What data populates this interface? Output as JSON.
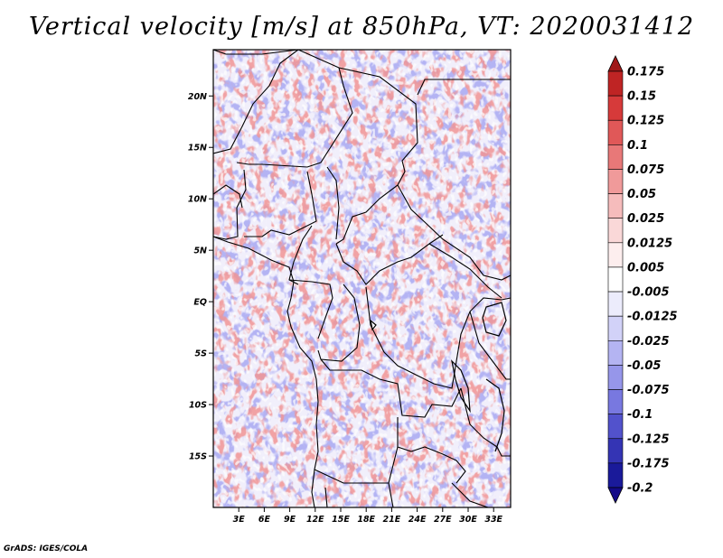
{
  "title": "Vertical velocity [m/s] at 850hPa, VT: 2020031412",
  "footer": "GrADS: IGES/COLA",
  "chart_data": {
    "type": "heatmap",
    "title": "Vertical velocity [m/s] at 850hPa, VT: 2020031412",
    "variable": "Vertical velocity",
    "units": "m/s",
    "level": "850hPa",
    "valid_time": "2020031412",
    "xlabel": "",
    "ylabel": "",
    "xlim": [
      0,
      35
    ],
    "ylim": [
      -20,
      24.5
    ],
    "x_ticks": [
      {
        "value": 3,
        "label": "3E"
      },
      {
        "value": 6,
        "label": "6E"
      },
      {
        "value": 9,
        "label": "9E"
      },
      {
        "value": 12,
        "label": "12E"
      },
      {
        "value": 15,
        "label": "15E"
      },
      {
        "value": 18,
        "label": "18E"
      },
      {
        "value": 21,
        "label": "21E"
      },
      {
        "value": 24,
        "label": "24E"
      },
      {
        "value": 27,
        "label": "27E"
      },
      {
        "value": 30,
        "label": "30E"
      },
      {
        "value": 33,
        "label": "33E"
      }
    ],
    "y_ticks": [
      {
        "value": 20,
        "label": "20N"
      },
      {
        "value": 15,
        "label": "15N"
      },
      {
        "value": 10,
        "label": "10N"
      },
      {
        "value": 5,
        "label": "5N"
      },
      {
        "value": 0,
        "label": "EQ"
      },
      {
        "value": -5,
        "label": "5S"
      },
      {
        "value": -10,
        "label": "10S"
      },
      {
        "value": -15,
        "label": "15S"
      }
    ],
    "colorbar": {
      "labels": [
        "0.175",
        "0.15",
        "0.125",
        "0.1",
        "0.075",
        "0.05",
        "0.025",
        "0.0125",
        "0.005",
        "-0.005",
        "-0.0125",
        "-0.025",
        "-0.05",
        "-0.075",
        "-0.1",
        "-0.125",
        "-0.175",
        "-0.2"
      ],
      "colors": [
        "#a01818",
        "#bf2424",
        "#d63a3a",
        "#e05858",
        "#e87878",
        "#f09a9a",
        "#f6bcbc",
        "#fad8d8",
        "#fdeeee",
        "#ffffff",
        "#ececfc",
        "#d2d2f8",
        "#b4b4f2",
        "#9696ea",
        "#7878e0",
        "#5252cc",
        "#3434b4",
        "#1a1a9a",
        "#140a88"
      ]
    }
  }
}
